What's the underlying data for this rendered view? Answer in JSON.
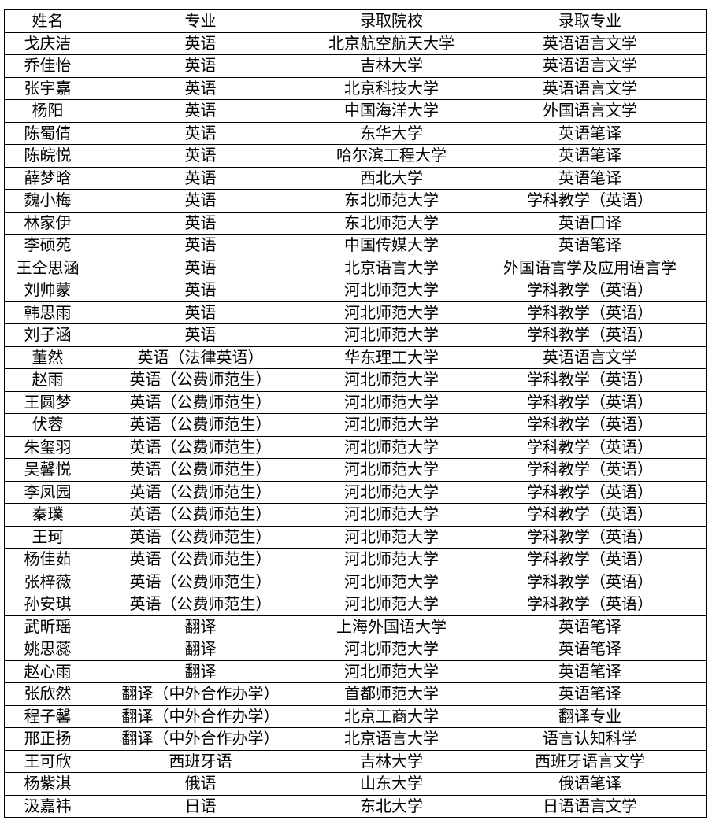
{
  "headers": [
    "姓名",
    "专业",
    "录取院校",
    "录取专业"
  ],
  "rows": [
    [
      "戈庆洁",
      "英语",
      "北京航空航天大学",
      "英语语言文学"
    ],
    [
      "乔佳怡",
      "英语",
      "吉林大学",
      "英语语言文学"
    ],
    [
      "张宇嘉",
      "英语",
      "北京科技大学",
      "英语语言文学"
    ],
    [
      "杨阳",
      "英语",
      "中国海洋大学",
      "外国语言文学"
    ],
    [
      "陈蜀倩",
      "英语",
      "东华大学",
      "英语笔译"
    ],
    [
      "陈皖悦",
      "英语",
      "哈尔滨工程大学",
      "英语笔译"
    ],
    [
      "薛梦晗",
      "英语",
      "西北大学",
      "英语笔译"
    ],
    [
      "魏小梅",
      "英语",
      "东北师范大学",
      "学科教学（英语）"
    ],
    [
      "林家伊",
      "英语",
      "东北师范大学",
      "英语口译"
    ],
    [
      "李硕苑",
      "英语",
      "中国传媒大学",
      "英语笔译"
    ],
    [
      "王仝思涵",
      "英语",
      "北京语言大学",
      "外国语言学及应用语言学"
    ],
    [
      "刘帅蒙",
      "英语",
      "河北师范大学",
      "学科教学（英语）"
    ],
    [
      "韩思雨",
      "英语",
      "河北师范大学",
      "学科教学（英语）"
    ],
    [
      "刘子涵",
      "英语",
      "河北师范大学",
      "学科教学（英语）"
    ],
    [
      "董然",
      "英语（法律英语）",
      "华东理工大学",
      "英语语言文学"
    ],
    [
      "赵雨",
      "英语（公费师范生）",
      "河北师范大学",
      "学科教学（英语）"
    ],
    [
      "王圆梦",
      "英语（公费师范生）",
      "河北师范大学",
      "学科教学（英语）"
    ],
    [
      "伏蓉",
      "英语（公费师范生）",
      "河北师范大学",
      "学科教学（英语）"
    ],
    [
      "朱玺羽",
      "英语（公费师范生）",
      "河北师范大学",
      "学科教学（英语）"
    ],
    [
      "吴馨悦",
      "英语（公费师范生）",
      "河北师范大学",
      "学科教学（英语）"
    ],
    [
      "李凤园",
      "英语（公费师范生）",
      "河北师范大学",
      "学科教学（英语）"
    ],
    [
      "秦璞",
      "英语（公费师范生）",
      "河北师范大学",
      "学科教学（英语）"
    ],
    [
      "王珂",
      "英语（公费师范生）",
      "河北师范大学",
      "学科教学（英语）"
    ],
    [
      "杨佳茹",
      "英语（公费师范生）",
      "河北师范大学",
      "学科教学（英语）"
    ],
    [
      "张梓薇",
      "英语（公费师范生）",
      "河北师范大学",
      "学科教学（英语）"
    ],
    [
      "孙安琪",
      "英语（公费师范生）",
      "河北师范大学",
      "学科教学（英语）"
    ],
    [
      "武昕瑶",
      "翻译",
      "上海外国语大学",
      "英语笔译"
    ],
    [
      "姚思蕊",
      "翻译",
      "河北师范大学",
      "英语笔译"
    ],
    [
      "赵心雨",
      "翻译",
      "河北师范大学",
      "英语笔译"
    ],
    [
      "张欣然",
      "翻译（中外合作办学）",
      "首都师范大学",
      "英语笔译"
    ],
    [
      "程子馨",
      "翻译（中外合作办学）",
      "北京工商大学",
      "翻译专业"
    ],
    [
      "邢正扬",
      "翻译（中外合作办学）",
      "北京语言大学",
      "语言认知科学"
    ],
    [
      "王可欣",
      "西班牙语",
      "吉林大学",
      "西班牙语言文学"
    ],
    [
      "杨紫淇",
      "俄语",
      "山东大学",
      "俄语笔译"
    ],
    [
      "汲嘉祎",
      "日语",
      "东北大学",
      "日语语言文学"
    ]
  ]
}
